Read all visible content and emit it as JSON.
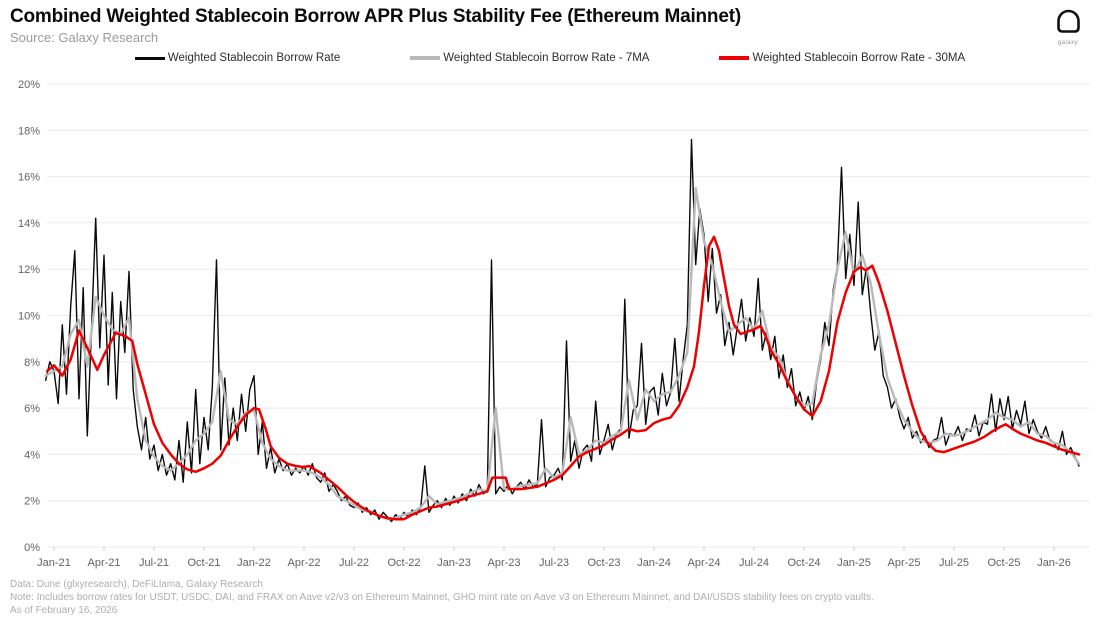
{
  "header": {
    "title": "Combined Weighted Stablecoin Borrow APR Plus Stability Fee (Ethereum Mainnet)",
    "source": "Source: Galaxy Research",
    "logo_caption": "galaxy"
  },
  "footer": {
    "data_line": "Data: Dune (glxyresearch), DeFiLlama, Galaxy Research",
    "note_line": "Note: Includes borrow rates for USDT, USDC, DAI, and FRAX on Aave v2/v3 on Ethereum Mainnet, GHO mint rate on Aave v3 on Ethereum Mainnet, and DAI/USDS stability fees on crypto vaults.",
    "as_of_line": "As of February 16, 2026"
  },
  "chart_data": {
    "type": "line",
    "title": "Combined Weighted Stablecoin Borrow APR Plus Stability Fee (Ethereum Mainnet)",
    "x_unit": "months since Jan-2021",
    "y_unit": "percent APR",
    "ylim": [
      0,
      20
    ],
    "grid": "horizontal",
    "legend_position": "top-center",
    "colors": {
      "borrow": "#0a0a0a",
      "borrow_7ma": "#b9b9b9",
      "borrow_30ma": "#ed0000",
      "gridline": "#ebebeb",
      "axis_text": "#636363"
    },
    "y_axis": {
      "ticks": [
        {
          "value": 0,
          "label": "0%"
        },
        {
          "value": 2,
          "label": "2%"
        },
        {
          "value": 4,
          "label": "4%"
        },
        {
          "value": 6,
          "label": "6%"
        },
        {
          "value": 8,
          "label": "8%"
        },
        {
          "value": 10,
          "label": "10%"
        },
        {
          "value": 12,
          "label": "12%"
        },
        {
          "value": 14,
          "label": "14%"
        },
        {
          "value": 16,
          "label": "16%"
        },
        {
          "value": 18,
          "label": "18%"
        },
        {
          "value": 20,
          "label": "20%"
        }
      ]
    },
    "x_axis": {
      "ticks": [
        {
          "m": 0,
          "label": "Jan-21"
        },
        {
          "m": 3,
          "label": "Apr-21"
        },
        {
          "m": 6,
          "label": "Jul-21"
        },
        {
          "m": 9,
          "label": "Oct-21"
        },
        {
          "m": 12,
          "label": "Jan-22"
        },
        {
          "m": 15,
          "label": "Apr-22"
        },
        {
          "m": 18,
          "label": "Jul-22"
        },
        {
          "m": 21,
          "label": "Oct-22"
        },
        {
          "m": 24,
          "label": "Jan-23"
        },
        {
          "m": 27,
          "label": "Apr-23"
        },
        {
          "m": 30,
          "label": "Jul-23"
        },
        {
          "m": 33,
          "label": "Oct-23"
        },
        {
          "m": 36,
          "label": "Jan-24"
        },
        {
          "m": 39,
          "label": "Apr-24"
        },
        {
          "m": 42,
          "label": "Jul-24"
        },
        {
          "m": 45,
          "label": "Oct-24"
        },
        {
          "m": 48,
          "label": "Jan-25"
        },
        {
          "m": 51,
          "label": "Apr-25"
        },
        {
          "m": 54,
          "label": "Jul-25"
        },
        {
          "m": 57,
          "label": "Oct-25"
        },
        {
          "m": 60,
          "label": "Jan-26"
        }
      ]
    },
    "as_of": "February 16, 2026",
    "series": [
      {
        "id": "borrow",
        "name": "Weighted Stablecoin Borrow Rate",
        "color": "#0a0a0a",
        "width": 1.4,
        "start": -0.5,
        "step": 0.25,
        "values": [
          7.2,
          8.0,
          7.6,
          6.2,
          9.6,
          6.6,
          10.4,
          12.8,
          6.4,
          11.2,
          4.8,
          9.4,
          14.2,
          8.6,
          12.6,
          7.0,
          11.0,
          6.4,
          10.6,
          8.4,
          11.9,
          6.8,
          5.2,
          4.2,
          5.6,
          3.8,
          4.4,
          3.3,
          4.0,
          3.1,
          3.6,
          2.9,
          4.6,
          2.8,
          5.4,
          3.2,
          6.8,
          3.6,
          5.6,
          4.2,
          6.9,
          12.4,
          4.2,
          7.3,
          4.4,
          6.0,
          4.6,
          6.6,
          5.0,
          6.8,
          7.4,
          4.0,
          5.4,
          3.4,
          4.3,
          3.2,
          3.8,
          3.3,
          3.6,
          3.1,
          3.4,
          3.2,
          3.5,
          3.1,
          3.6,
          3.0,
          2.8,
          3.2,
          2.4,
          2.7,
          2.4,
          2.0,
          2.2,
          1.8,
          1.7,
          1.9,
          1.5,
          1.7,
          1.4,
          1.6,
          1.2,
          1.5,
          1.3,
          1.1,
          1.4,
          1.2,
          1.5,
          1.3,
          1.6,
          1.4,
          1.7,
          3.5,
          1.5,
          1.8,
          2.0,
          1.7,
          2.1,
          1.8,
          2.2,
          1.9,
          2.3,
          2.0,
          2.5,
          2.2,
          2.7,
          2.3,
          2.4,
          12.4,
          2.3,
          2.6,
          2.4,
          2.7,
          2.3,
          2.6,
          2.8,
          2.5,
          2.9,
          2.6,
          2.7,
          5.5,
          2.6,
          3.0,
          3.1,
          3.4,
          2.9,
          8.9,
          3.7,
          4.6,
          3.4,
          4.2,
          4.4,
          3.7,
          6.3,
          4.0,
          4.6,
          5.3,
          4.2,
          4.9,
          5.1,
          10.7,
          4.7,
          5.9,
          6.1,
          8.8,
          5.3,
          6.7,
          6.9,
          5.7,
          7.5,
          6.1,
          6.7,
          9.0,
          6.3,
          8.1,
          9.6,
          17.6,
          12.2,
          14.6,
          13.5,
          10.6,
          12.9,
          10.1,
          10.9,
          8.7,
          9.7,
          8.3,
          9.5,
          10.7,
          8.9,
          9.9,
          9.1,
          11.6,
          8.5,
          9.3,
          8.1,
          9.1,
          7.3,
          8.3,
          6.9,
          7.7,
          6.1,
          6.7,
          5.9,
          6.5,
          5.5,
          7.1,
          8.1,
          9.7,
          8.7,
          11.1,
          12.1,
          16.4,
          11.6,
          13.5,
          11.3,
          14.9,
          10.9,
          12.1,
          10.1,
          8.5,
          9.3,
          7.4,
          6.9,
          6.0,
          6.4,
          5.6,
          5.1,
          5.6,
          4.7,
          5.0,
          4.5,
          4.8,
          4.3,
          4.6,
          4.7,
          5.6,
          4.4,
          4.9,
          4.8,
          5.2,
          4.6,
          5.1,
          5.0,
          5.7,
          4.8,
          5.4,
          5.3,
          6.6,
          5.0,
          6.4,
          5.5,
          6.5,
          5.1,
          5.9,
          5.3,
          6.3,
          4.9,
          5.5,
          5.0,
          4.7,
          5.2,
          4.6,
          4.5,
          4.2,
          5.0,
          4.0,
          4.3,
          3.9,
          3.5
        ]
      },
      {
        "id": "borrow_7ma",
        "name": "Weighted Stablecoin Borrow Rate - 7MA",
        "color": "#b9b9b9",
        "width": 2.4,
        "start": -0.5,
        "step": 0.5,
        "values": [
          7.4,
          7.6,
          7.8,
          9.2,
          9.8,
          7.8,
          10.8,
          10.0,
          9.4,
          9.2,
          9.9,
          6.4,
          4.6,
          3.9,
          3.5,
          3.3,
          3.6,
          4.0,
          4.6,
          4.9,
          5.4,
          7.6,
          5.5,
          5.3,
          5.8,
          5.9,
          4.5,
          3.8,
          3.5,
          3.3,
          3.3,
          3.3,
          3.2,
          3.0,
          2.7,
          2.2,
          2.0,
          1.8,
          1.6,
          1.5,
          1.35,
          1.2,
          1.25,
          1.4,
          1.5,
          1.7,
          2.2,
          1.85,
          1.95,
          2.05,
          2.15,
          2.35,
          2.5,
          2.4,
          6.0,
          2.5,
          2.5,
          2.65,
          2.7,
          2.75,
          3.4,
          3.0,
          3.2,
          5.6,
          4.0,
          4.2,
          4.6,
          4.5,
          4.8,
          5.0,
          7.2,
          5.5,
          6.8,
          6.3,
          6.6,
          6.7,
          7.4,
          8.4,
          15.5,
          13.2,
          12.2,
          10.6,
          9.3,
          9.6,
          9.9,
          9.4,
          10.2,
          8.6,
          8.2,
          7.2,
          6.5,
          6.1,
          6.2,
          8.3,
          9.6,
          12.0,
          13.6,
          11.8,
          12.6,
          11.4,
          9.2,
          7.3,
          6.3,
          5.5,
          5.0,
          4.6,
          4.5,
          4.6,
          4.9,
          4.8,
          4.9,
          5.1,
          5.3,
          5.5,
          5.8,
          5.6,
          5.5,
          5.2,
          5.4,
          4.9,
          4.8,
          4.5,
          4.4,
          4.1,
          3.6
        ]
      },
      {
        "id": "borrow_30ma",
        "name": "Weighted Stablecoin Borrow Rate - 30MA",
        "color": "#ed0000",
        "width": 2.5,
        "points": [
          [
            -0.4,
            7.6
          ],
          [
            0,
            7.85
          ],
          [
            0.5,
            7.4
          ],
          [
            1,
            8.1
          ],
          [
            1.5,
            9.35
          ],
          [
            2,
            8.6
          ],
          [
            2.6,
            7.65
          ],
          [
            3,
            8.3
          ],
          [
            3.7,
            9.25
          ],
          [
            4.3,
            9.1
          ],
          [
            4.7,
            8.9
          ],
          [
            5,
            7.9
          ],
          [
            5.5,
            6.6
          ],
          [
            6,
            5.3
          ],
          [
            6.5,
            4.5
          ],
          [
            7,
            4.0
          ],
          [
            7.5,
            3.6
          ],
          [
            8,
            3.35
          ],
          [
            8.5,
            3.25
          ],
          [
            9,
            3.4
          ],
          [
            9.5,
            3.6
          ],
          [
            10,
            3.95
          ],
          [
            10.5,
            4.6
          ],
          [
            11,
            5.2
          ],
          [
            11.5,
            5.7
          ],
          [
            12,
            6.0
          ],
          [
            12.3,
            5.95
          ],
          [
            12.7,
            5.1
          ],
          [
            13,
            4.35
          ],
          [
            13.5,
            3.85
          ],
          [
            14,
            3.6
          ],
          [
            14.5,
            3.5
          ],
          [
            15,
            3.45
          ],
          [
            15.3,
            3.5
          ],
          [
            16,
            3.2
          ],
          [
            16.5,
            2.9
          ],
          [
            17,
            2.6
          ],
          [
            17.5,
            2.25
          ],
          [
            18,
            1.95
          ],
          [
            18.5,
            1.7
          ],
          [
            19,
            1.5
          ],
          [
            19.5,
            1.35
          ],
          [
            20,
            1.25
          ],
          [
            20.5,
            1.2
          ],
          [
            21,
            1.2
          ],
          [
            21.5,
            1.4
          ],
          [
            22,
            1.55
          ],
          [
            22.5,
            1.7
          ],
          [
            23,
            1.75
          ],
          [
            23.5,
            1.85
          ],
          [
            24,
            1.95
          ],
          [
            24.5,
            2.05
          ],
          [
            25,
            2.2
          ],
          [
            25.5,
            2.3
          ],
          [
            26,
            2.4
          ],
          [
            26.3,
            3.0
          ],
          [
            27.1,
            3.0
          ],
          [
            27.3,
            2.5
          ],
          [
            28,
            2.5
          ],
          [
            28.5,
            2.55
          ],
          [
            29,
            2.6
          ],
          [
            29.5,
            2.75
          ],
          [
            30,
            2.9
          ],
          [
            30.5,
            3.1
          ],
          [
            31,
            3.5
          ],
          [
            31.5,
            3.9
          ],
          [
            32,
            4.1
          ],
          [
            32.5,
            4.25
          ],
          [
            33,
            4.4
          ],
          [
            33.5,
            4.65
          ],
          [
            34,
            4.85
          ],
          [
            34.5,
            5.1
          ],
          [
            35,
            5.0
          ],
          [
            35.5,
            5.05
          ],
          [
            36,
            5.35
          ],
          [
            36.5,
            5.5
          ],
          [
            37,
            5.6
          ],
          [
            37.5,
            6.1
          ],
          [
            38,
            6.9
          ],
          [
            38.4,
            7.8
          ],
          [
            38.7,
            9.3
          ],
          [
            39,
            11.3
          ],
          [
            39.3,
            13.0
          ],
          [
            39.6,
            13.4
          ],
          [
            39.9,
            12.8
          ],
          [
            40.2,
            11.6
          ],
          [
            40.5,
            10.4
          ],
          [
            40.8,
            9.6
          ],
          [
            41.2,
            9.2
          ],
          [
            41.6,
            9.3
          ],
          [
            42,
            9.4
          ],
          [
            42.4,
            9.55
          ],
          [
            42.7,
            9.1
          ],
          [
            43,
            8.5
          ],
          [
            43.5,
            7.9
          ],
          [
            44,
            7.15
          ],
          [
            44.5,
            6.5
          ],
          [
            45,
            5.95
          ],
          [
            45.5,
            5.65
          ],
          [
            46,
            6.3
          ],
          [
            46.5,
            7.6
          ],
          [
            47,
            9.7
          ],
          [
            47.5,
            11.0
          ],
          [
            48,
            11.9
          ],
          [
            48.4,
            12.1
          ],
          [
            48.7,
            11.95
          ],
          [
            49.1,
            12.15
          ],
          [
            49.5,
            11.4
          ],
          [
            50,
            10.2
          ],
          [
            50.5,
            8.8
          ],
          [
            51,
            7.4
          ],
          [
            51.5,
            6.1
          ],
          [
            52,
            5.0
          ],
          [
            52.4,
            4.5
          ],
          [
            52.9,
            4.15
          ],
          [
            53.4,
            4.1
          ],
          [
            54,
            4.25
          ],
          [
            54.6,
            4.4
          ],
          [
            55.2,
            4.55
          ],
          [
            55.8,
            4.75
          ],
          [
            56.3,
            5.0
          ],
          [
            56.8,
            5.2
          ],
          [
            57.1,
            5.3
          ],
          [
            57.5,
            5.1
          ],
          [
            58,
            4.9
          ],
          [
            58.5,
            4.75
          ],
          [
            59,
            4.6
          ],
          [
            59.5,
            4.5
          ],
          [
            60,
            4.35
          ],
          [
            60.5,
            4.2
          ],
          [
            61,
            4.1
          ],
          [
            61.5,
            4.0
          ]
        ]
      }
    ]
  }
}
